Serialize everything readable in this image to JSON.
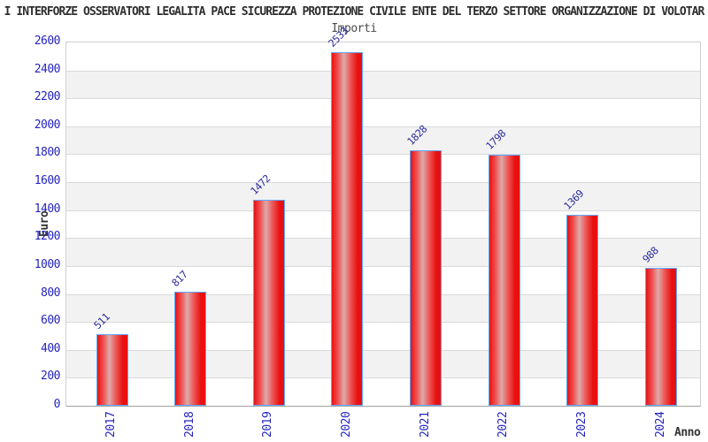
{
  "chart_data": {
    "type": "bar",
    "title": "I INTERFORZE OSSERVATORI LEGALITA PACE SICUREZZA PROTEZIONE CIVILE ENTE DEL TERZO SETTORE ORGANIZZAZIONE DI VOLOTAR",
    "subtitle": "Importi",
    "xlabel": "Anno",
    "ylabel": "Euro",
    "categories": [
      "2017",
      "2018",
      "2019",
      "2020",
      "2021",
      "2022",
      "2023",
      "2024"
    ],
    "values": [
      511,
      817,
      1472,
      2533,
      1828,
      1798,
      1369,
      988
    ],
    "ylim": [
      0,
      2600
    ],
    "ytick_step": 200,
    "grid": true,
    "legend_position": "none",
    "colors": {
      "bar_fill": "#e81111",
      "bar_highlight": "#ddaaaa",
      "bar_border": "#5fa8ff",
      "axis_text_blue": "#2424c0",
      "value_label_blue": "#2b2b9e",
      "band_alt": "#f2f2f2",
      "gridline": "#d9d9d9",
      "title_text": "#2e2e2e"
    }
  }
}
